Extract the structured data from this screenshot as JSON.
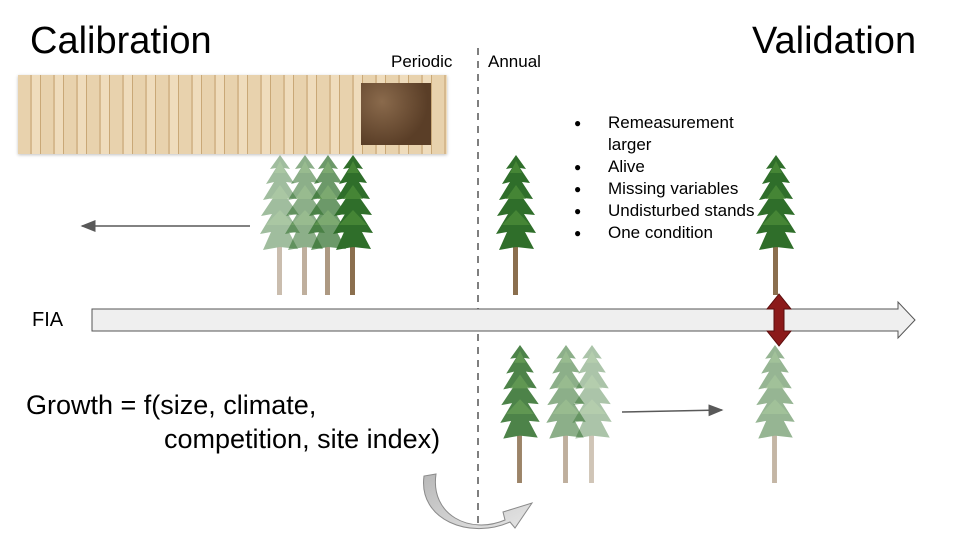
{
  "titles": {
    "left": "Calibration",
    "right": "Validation"
  },
  "labels": {
    "periodic": "Periodic",
    "annual": "Annual",
    "fia": "FIA"
  },
  "criteria": [
    "Remeasurement larger",
    "Alive",
    "Missing variables",
    "Undisturbed stands",
    "One condition"
  ],
  "formula": {
    "line1": "Growth = f(size, climate,",
    "line2": "competition, site index)"
  },
  "colors": {
    "timeline_fill": "#efefef",
    "timeline_stroke": "#555555",
    "arrow_gray": "#595959",
    "validation_arrow": "#8b1a1a",
    "tree_green": "#2f6e2a",
    "trunk": "#8b6f4e"
  },
  "icons": {
    "tree": "pine-tree-icon",
    "core": "tree-core-sample-image",
    "curved_arrow": "curved-arrow-icon"
  }
}
